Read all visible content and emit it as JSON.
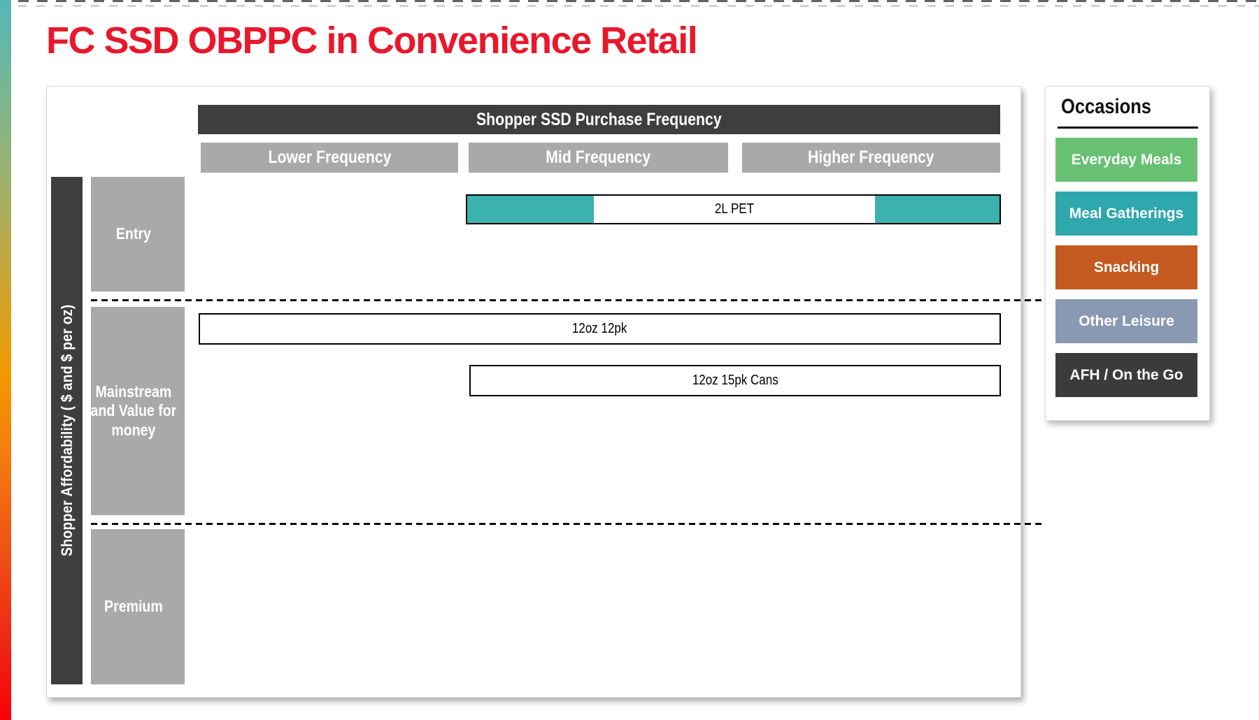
{
  "page": {
    "title": "FC SSD OBPPC in Convenience Retail"
  },
  "matrix": {
    "header": "Shopper SSD Purchase Frequency",
    "y_axis_label": "Shopper Affordability ( $ and $ per oz)",
    "columns": [
      {
        "label": "Lower Frequency"
      },
      {
        "label": "Mid Frequency"
      },
      {
        "label": "Higher Frequency"
      }
    ],
    "rows": [
      {
        "label": "Entry"
      },
      {
        "label": "Mainstream and Value for money"
      },
      {
        "label": "Premium"
      }
    ],
    "bars": [
      {
        "label": "2L PET",
        "row": "Entry",
        "spans": "Mid Frequency to Higher Frequency",
        "fill": "teal ends with white center"
      },
      {
        "label": "12oz 12pk",
        "row": "Mainstream and Value for money",
        "spans": "Lower Frequency to Higher Frequency",
        "fill": "white"
      },
      {
        "label": "12oz 15pk Cans",
        "row": "Mainstream and Value for money",
        "spans": "Mid Frequency to Higher Frequency",
        "fill": "white"
      }
    ]
  },
  "legend": {
    "title": "Occasions",
    "items": [
      {
        "label": "Everyday Meals",
        "color": "#68c173"
      },
      {
        "label": "Meal Gatherings",
        "color": "#2fa8ad"
      },
      {
        "label": "Snacking",
        "color": "#c45a1f"
      },
      {
        "label": "Other Leisure",
        "color": "#8a99b2"
      },
      {
        "label": "AFH / On the Go",
        "color": "#3b3b3b"
      }
    ]
  },
  "colors": {
    "title-red": "#e8182c",
    "charcoal": "#3e3e3e",
    "box-gray": "#a9a9a9",
    "bar-teal": "#3cb2ae",
    "bar-border": "#000000",
    "panel-border": "#d8d8d8"
  }
}
